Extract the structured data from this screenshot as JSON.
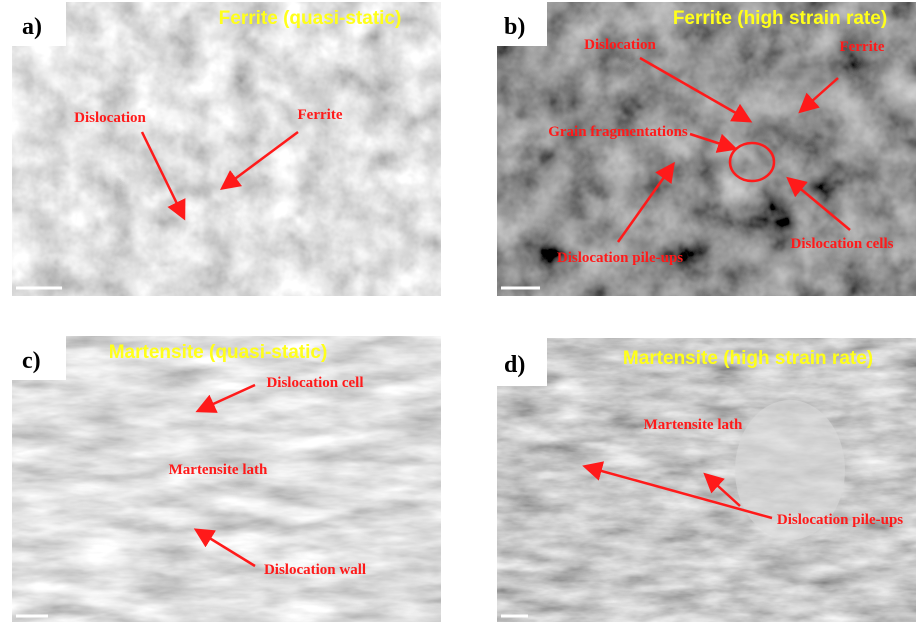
{
  "panels": [
    {
      "label": "a)",
      "title": "Ferrite (quasi-static)",
      "annotations": [
        "Dislocation",
        "Ferrite"
      ]
    },
    {
      "label": "b)",
      "title": "Ferrite (high strain rate)",
      "annotations": [
        "Dislocation",
        "Ferrite",
        "Grain fragmentations",
        "Dislocation pile-ups",
        "Dislocation cells"
      ]
    },
    {
      "label": "c)",
      "title": "Martensite (quasi-static)",
      "annotations": [
        "Dislocation cell",
        "Martensite lath",
        "Dislocation wall"
      ]
    },
    {
      "label": "d)",
      "title": "Martensite (high strain rate)",
      "annotations": [
        "Martensite lath",
        "Dislocation pile-ups"
      ]
    }
  ]
}
